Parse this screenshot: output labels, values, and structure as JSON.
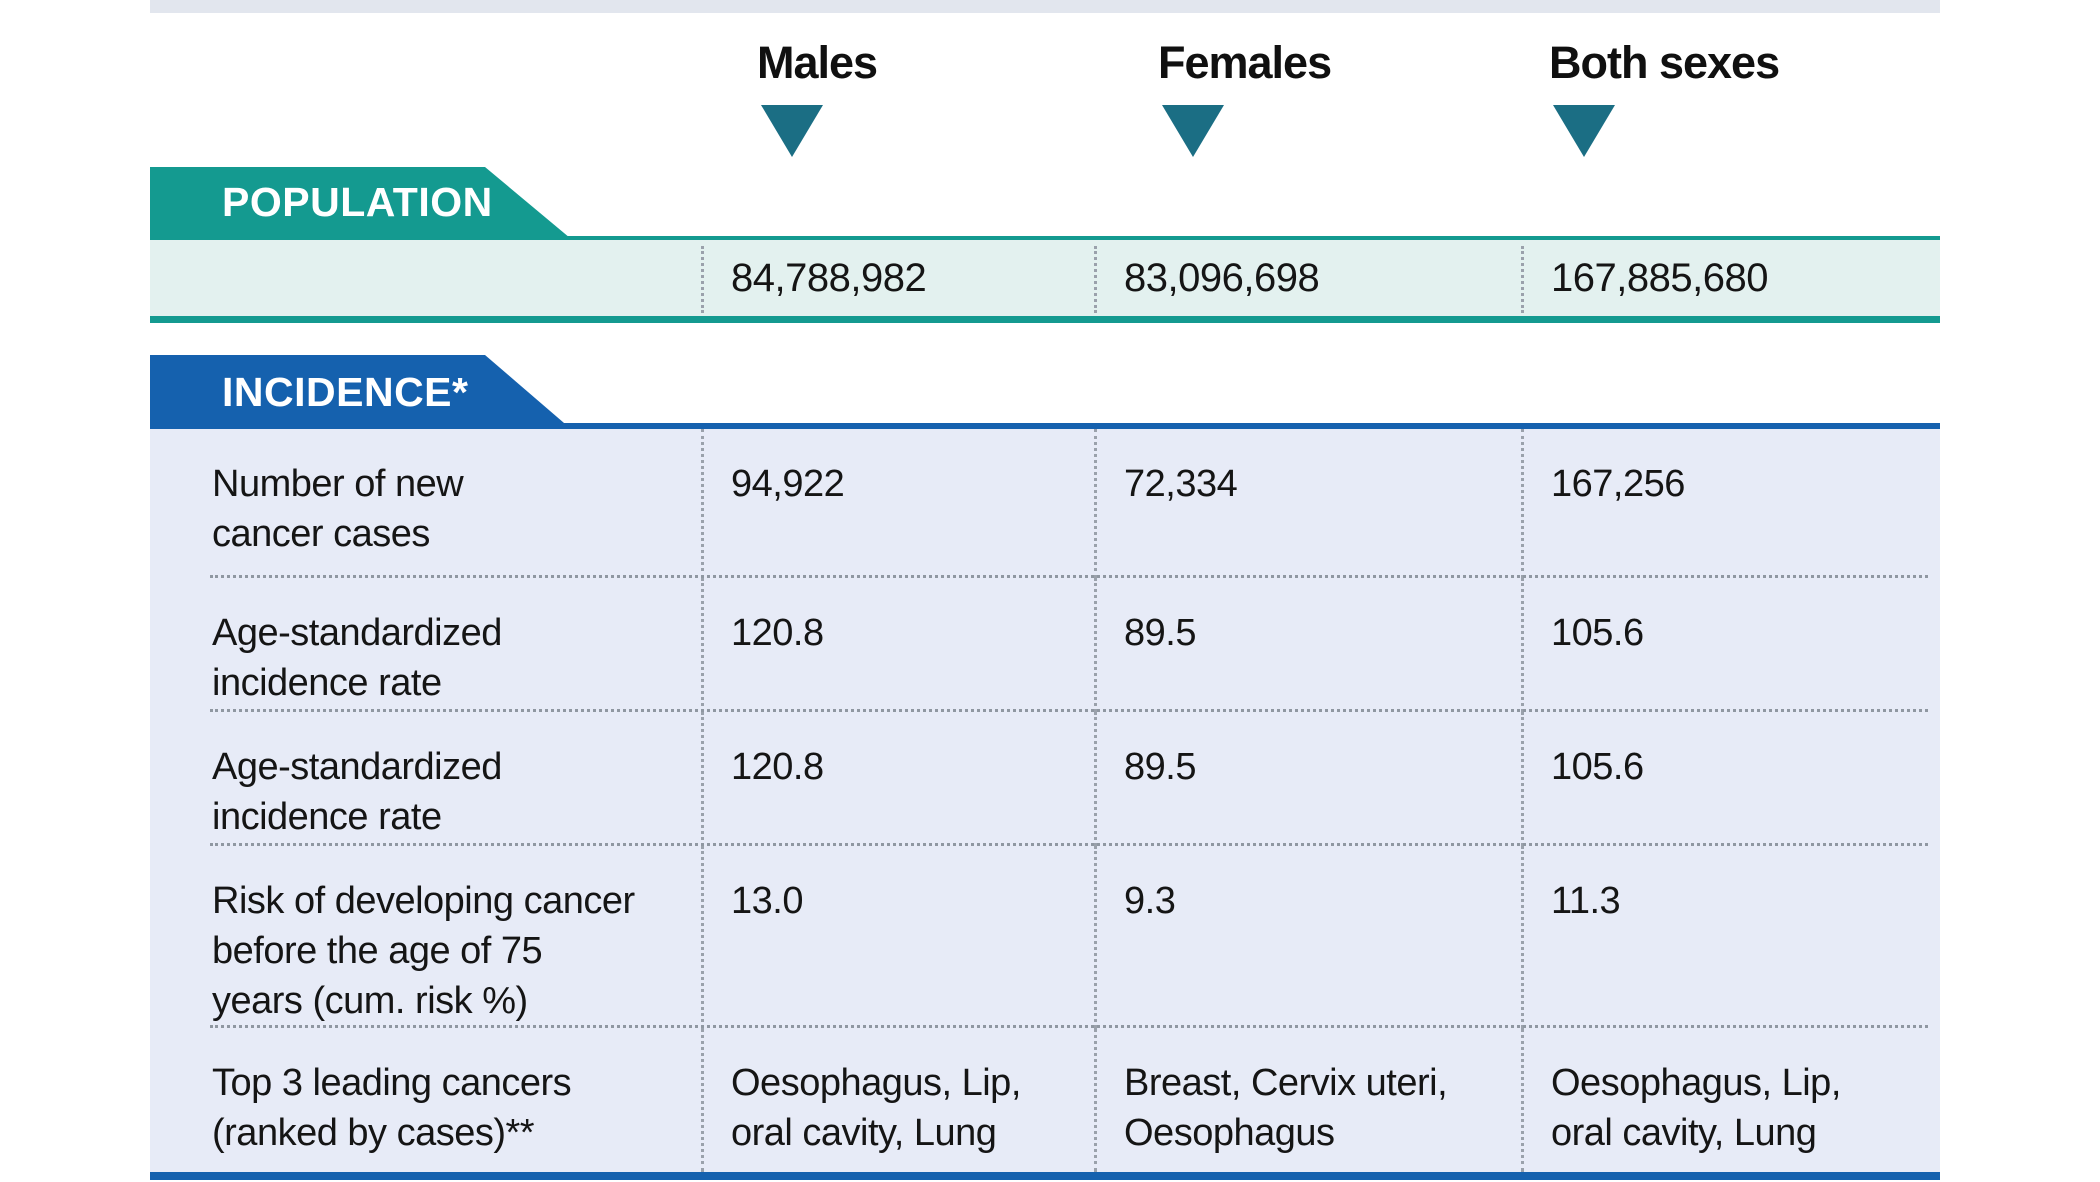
{
  "header": {
    "columns": [
      {
        "label": "Males"
      },
      {
        "label": "Females"
      },
      {
        "label": "Both sexes"
      }
    ]
  },
  "population": {
    "banner": "POPULATION",
    "values": [
      "84,788,982",
      "83,096,698",
      "167,885,680"
    ]
  },
  "incidence": {
    "banner": "INCIDENCE*",
    "rows": [
      {
        "label": "Number of new\ncancer cases",
        "values": [
          "94,922",
          "72,334",
          "167,256"
        ]
      },
      {
        "label": "Age-standardized\nincidence rate",
        "values": [
          "120.8",
          "89.5",
          "105.6"
        ]
      },
      {
        "label": "Age-standardized\nincidence rate",
        "values": [
          "120.8",
          "89.5",
          "105.6"
        ]
      },
      {
        "label": "Risk of developing cancer\nbefore the age of 75\nyears (cum. risk %)",
        "values": [
          "13.0",
          "9.3",
          "11.3"
        ]
      },
      {
        "label": "Top 3 leading cancers\n(ranked by cases)**",
        "values": [
          "Oesophagus, Lip,\noral cavity, Lung",
          "Breast, Cervix uteri,\nOesophagus",
          "Oesophagus, Lip,\noral cavity, Lung"
        ]
      }
    ]
  },
  "colors": {
    "teal_banner": "#149a90",
    "teal_triangle": "#1b6e84",
    "population_row_bg": "#e3f1ef",
    "blue_banner": "#1561ae",
    "incidence_bg": "#e7ebf7",
    "top_bar": "#e2e6ee"
  }
}
